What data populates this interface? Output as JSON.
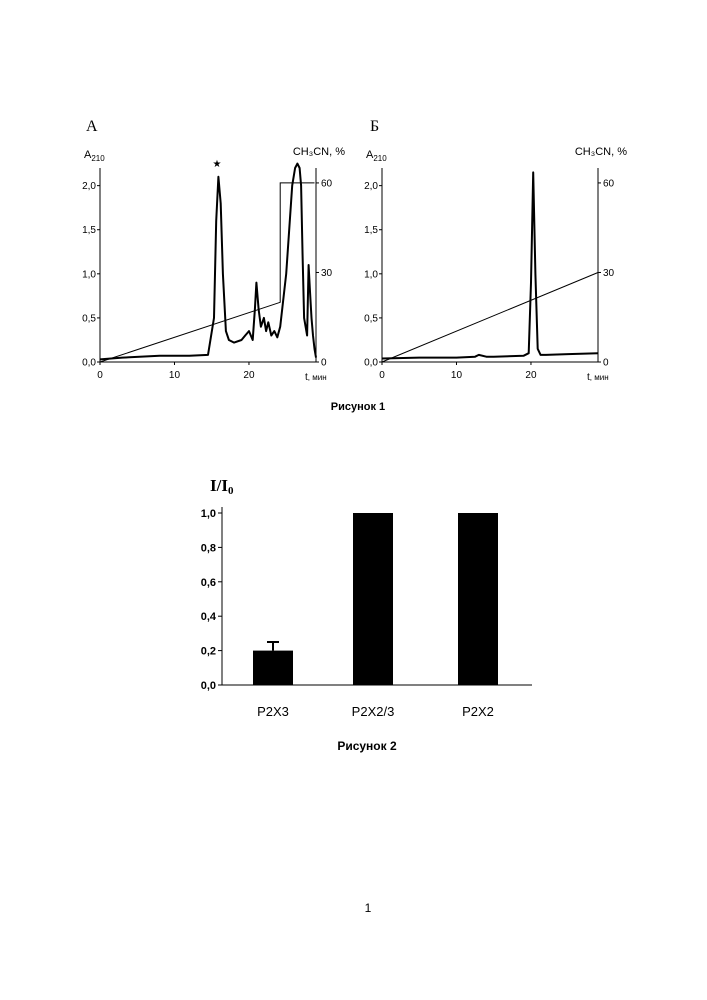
{
  "chart_data": [
    {
      "type": "line",
      "panel_label": "А",
      "ylabel": "A",
      "ylabel_sub": "210",
      "y2label": "CH₃CN, %",
      "xlabel": "t",
      "xlabel_unit": ", мин",
      "peak_marker": "★",
      "xlim": [
        0,
        29
      ],
      "ylim": [
        0,
        2.2
      ],
      "y2lim": [
        0,
        65
      ],
      "x_ticks": [
        0,
        10,
        20
      ],
      "x_tick_labels": [
        "0",
        "10",
        "20"
      ],
      "y_ticks": [
        0,
        0.5,
        1.0,
        1.5,
        2.0
      ],
      "y_tick_labels": [
        "0,0",
        "0,5",
        "1,0",
        "1,5",
        "2,0"
      ],
      "y2_ticks": [
        0,
        30,
        60
      ],
      "y2_tick_labels": [
        "0",
        "30",
        "60"
      ],
      "series": [
        {
          "axis": "left",
          "x": [
            0,
            3,
            8,
            12,
            14.5,
            15.3,
            15.6,
            15.9,
            16.2,
            16.5,
            16.9,
            17.3,
            18,
            19,
            19.5,
            20,
            20.5,
            20.8,
            21,
            21.3,
            21.6,
            22,
            22.3,
            22.6,
            23,
            23.4,
            23.8,
            24.2,
            24.6,
            25,
            25.4,
            25.8,
            26.2,
            26.5,
            26.8,
            27,
            27.2,
            27.4,
            27.6,
            27.8,
            28,
            28.2,
            28.4,
            28.6,
            28.8,
            29
          ],
          "y": [
            0.03,
            0.05,
            0.07,
            0.07,
            0.08,
            0.5,
            1.6,
            2.1,
            1.8,
            1.0,
            0.35,
            0.25,
            0.22,
            0.25,
            0.3,
            0.35,
            0.25,
            0.6,
            0.9,
            0.6,
            0.4,
            0.5,
            0.35,
            0.45,
            0.3,
            0.35,
            0.28,
            0.4,
            0.7,
            1.0,
            1.5,
            2.0,
            2.2,
            2.25,
            2.2,
            2.0,
            1.2,
            0.5,
            0.4,
            0.3,
            1.1,
            0.8,
            0.5,
            0.3,
            0.15,
            0.05
          ]
        },
        {
          "axis": "right",
          "x": [
            0,
            24.2,
            24.2,
            28.8
          ],
          "y": [
            0,
            20,
            60,
            60
          ]
        }
      ]
    },
    {
      "type": "line",
      "panel_label": "Б",
      "ylabel": "A",
      "ylabel_sub": "210",
      "y2label": "CH₃CN, %",
      "xlabel": "t",
      "xlabel_unit": ", мин",
      "xlim": [
        0,
        29
      ],
      "ylim": [
        0,
        2.2
      ],
      "y2lim": [
        0,
        65
      ],
      "x_ticks": [
        0,
        10,
        20
      ],
      "x_tick_labels": [
        "0",
        "10",
        "20"
      ],
      "y_ticks": [
        0,
        0.5,
        1.0,
        1.5,
        2.0
      ],
      "y_tick_labels": [
        "0,0",
        "0,5",
        "1,0",
        "1,5",
        "2,0"
      ],
      "y2_ticks": [
        0,
        30,
        60
      ],
      "y2_tick_labels": [
        "0",
        "30",
        "60"
      ],
      "series": [
        {
          "axis": "left",
          "x": [
            0,
            5,
            10,
            12.5,
            13,
            14,
            15,
            19,
            19.7,
            20,
            20.3,
            20.6,
            20.9,
            21.3,
            22,
            25,
            29
          ],
          "y": [
            0.04,
            0.05,
            0.05,
            0.06,
            0.08,
            0.06,
            0.06,
            0.07,
            0.1,
            0.9,
            2.15,
            1.0,
            0.15,
            0.08,
            0.08,
            0.09,
            0.1
          ]
        },
        {
          "axis": "right",
          "x": [
            0,
            29
          ],
          "y": [
            0,
            30
          ]
        }
      ]
    },
    {
      "type": "bar",
      "ylabel": "I/I",
      "ylabel_sub": "0",
      "categories": [
        "P2X3",
        "P2X2/3",
        "P2X2"
      ],
      "values": [
        0.2,
        1.0,
        1.0
      ],
      "error": [
        0.05,
        0,
        0
      ],
      "ylim": [
        0,
        1.0
      ],
      "y_ticks": [
        0,
        0.2,
        0.4,
        0.6,
        0.8,
        1.0
      ],
      "y_tick_labels": [
        "0,0",
        "0,2",
        "0,4",
        "0,6",
        "0,8",
        "1,0"
      ]
    }
  ],
  "captions": {
    "figure1": "Рисунок 1",
    "figure2": "Рисунок 2"
  },
  "page_number": "1"
}
